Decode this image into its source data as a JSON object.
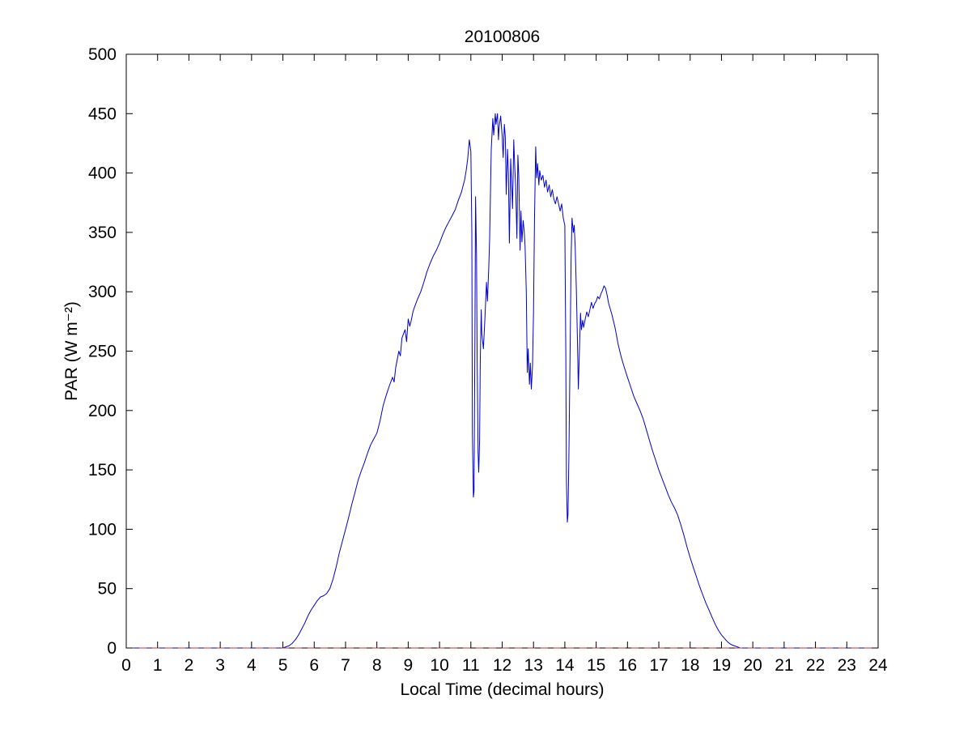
{
  "figure": {
    "background": "#ffffff",
    "axis_color": "#000000"
  },
  "chart_data": {
    "type": "line",
    "title": "20100806",
    "xlabel": "Local Time (decimal hours)",
    "ylabel": "PAR (W m⁻²)",
    "xlim": [
      0,
      24
    ],
    "ylim": [
      0,
      500
    ],
    "xticks": [
      0,
      1,
      2,
      3,
      4,
      5,
      6,
      7,
      8,
      9,
      10,
      11,
      12,
      13,
      14,
      15,
      16,
      17,
      18,
      19,
      20,
      21,
      22,
      23,
      24
    ],
    "yticks": [
      0,
      50,
      100,
      150,
      200,
      250,
      300,
      350,
      400,
      450,
      500
    ],
    "grid": false,
    "legend_position": "none",
    "series": [
      {
        "name": "PAR",
        "color": "#0000cc",
        "style": "solid",
        "width": 1,
        "points": [
          [
            0,
            0
          ],
          [
            0.5,
            0
          ],
          [
            1,
            0
          ],
          [
            1.5,
            0
          ],
          [
            2,
            0
          ],
          [
            2.5,
            0
          ],
          [
            3,
            0
          ],
          [
            3.5,
            0
          ],
          [
            4,
            0
          ],
          [
            4.5,
            0
          ],
          [
            4.8,
            0
          ],
          [
            5.0,
            0
          ],
          [
            5.1,
            1
          ],
          [
            5.2,
            2
          ],
          [
            5.3,
            4
          ],
          [
            5.4,
            7
          ],
          [
            5.5,
            11
          ],
          [
            5.6,
            16
          ],
          [
            5.7,
            21
          ],
          [
            5.8,
            27
          ],
          [
            5.9,
            32
          ],
          [
            6.0,
            36
          ],
          [
            6.1,
            40
          ],
          [
            6.2,
            43
          ],
          [
            6.3,
            44
          ],
          [
            6.4,
            46
          ],
          [
            6.5,
            50
          ],
          [
            6.6,
            58
          ],
          [
            6.7,
            68
          ],
          [
            6.8,
            80
          ],
          [
            6.9,
            90
          ],
          [
            7.0,
            100
          ],
          [
            7.1,
            110
          ],
          [
            7.2,
            121
          ],
          [
            7.3,
            131
          ],
          [
            7.4,
            141
          ],
          [
            7.5,
            149
          ],
          [
            7.6,
            156
          ],
          [
            7.7,
            164
          ],
          [
            7.8,
            171
          ],
          [
            7.9,
            176
          ],
          [
            8.0,
            181
          ],
          [
            8.1,
            191
          ],
          [
            8.2,
            204
          ],
          [
            8.3,
            213
          ],
          [
            8.4,
            221
          ],
          [
            8.5,
            228
          ],
          [
            8.55,
            224
          ],
          [
            8.6,
            236
          ],
          [
            8.7,
            250
          ],
          [
            8.75,
            246
          ],
          [
            8.8,
            261
          ],
          [
            8.9,
            268
          ],
          [
            8.95,
            258
          ],
          [
            9.0,
            277
          ],
          [
            9.05,
            271
          ],
          [
            9.1,
            276
          ],
          [
            9.15,
            283
          ],
          [
            9.2,
            287
          ],
          [
            9.3,
            294
          ],
          [
            9.4,
            300
          ],
          [
            9.5,
            308
          ],
          [
            9.6,
            317
          ],
          [
            9.7,
            324
          ],
          [
            9.8,
            330
          ],
          [
            9.9,
            335
          ],
          [
            10.0,
            341
          ],
          [
            10.1,
            348
          ],
          [
            10.2,
            354
          ],
          [
            10.3,
            359
          ],
          [
            10.4,
            364
          ],
          [
            10.5,
            369
          ],
          [
            10.6,
            377
          ],
          [
            10.7,
            384
          ],
          [
            10.8,
            394
          ],
          [
            10.85,
            402
          ],
          [
            10.9,
            412
          ],
          [
            10.95,
            428
          ],
          [
            11.0,
            418
          ],
          [
            11.03,
            350
          ],
          [
            11.05,
            180
          ],
          [
            11.08,
            127
          ],
          [
            11.1,
            132
          ],
          [
            11.13,
            260
          ],
          [
            11.15,
            380
          ],
          [
            11.18,
            330
          ],
          [
            11.2,
            250
          ],
          [
            11.23,
            165
          ],
          [
            11.25,
            148
          ],
          [
            11.28,
            175
          ],
          [
            11.3,
            240
          ],
          [
            11.33,
            285
          ],
          [
            11.35,
            265
          ],
          [
            11.4,
            252
          ],
          [
            11.45,
            278
          ],
          [
            11.5,
            308
          ],
          [
            11.53,
            292
          ],
          [
            11.57,
            320
          ],
          [
            11.6,
            345
          ],
          [
            11.65,
            420
          ],
          [
            11.7,
            446
          ],
          [
            11.73,
            432
          ],
          [
            11.78,
            450
          ],
          [
            11.8,
            441
          ],
          [
            11.85,
            450
          ],
          [
            11.88,
            428
          ],
          [
            11.9,
            438
          ],
          [
            11.95,
            448
          ],
          [
            12.0,
            431
          ],
          [
            12.03,
            413
          ],
          [
            12.07,
            441
          ],
          [
            12.1,
            430
          ],
          [
            12.13,
            382
          ],
          [
            12.17,
            420
          ],
          [
            12.2,
            400
          ],
          [
            12.23,
            341
          ],
          [
            12.27,
            412
          ],
          [
            12.3,
            392
          ],
          [
            12.33,
            370
          ],
          [
            12.37,
            428
          ],
          [
            12.4,
            405
          ],
          [
            12.43,
            390
          ],
          [
            12.47,
            345
          ],
          [
            12.5,
            415
          ],
          [
            12.53,
            398
          ],
          [
            12.57,
            335
          ],
          [
            12.6,
            368
          ],
          [
            12.63,
            342
          ],
          [
            12.67,
            360
          ],
          [
            12.7,
            352
          ],
          [
            12.73,
            338
          ],
          [
            12.77,
            300
          ],
          [
            12.8,
            232
          ],
          [
            12.83,
            252
          ],
          [
            12.87,
            222
          ],
          [
            12.9,
            240
          ],
          [
            12.93,
            218
          ],
          [
            12.97,
            238
          ],
          [
            13.0,
            282
          ],
          [
            13.03,
            360
          ],
          [
            13.07,
            422
          ],
          [
            13.1,
            396
          ],
          [
            13.13,
            408
          ],
          [
            13.17,
            390
          ],
          [
            13.2,
            402
          ],
          [
            13.25,
            394
          ],
          [
            13.3,
            398
          ],
          [
            13.35,
            388
          ],
          [
            13.4,
            394
          ],
          [
            13.45,
            384
          ],
          [
            13.5,
            390
          ],
          [
            13.55,
            380
          ],
          [
            13.6,
            386
          ],
          [
            13.65,
            378
          ],
          [
            13.7,
            374
          ],
          [
            13.75,
            380
          ],
          [
            13.8,
            374
          ],
          [
            13.85,
            368
          ],
          [
            13.9,
            374
          ],
          [
            13.95,
            362
          ],
          [
            14.0,
            356
          ],
          [
            14.03,
            250
          ],
          [
            14.05,
            140
          ],
          [
            14.08,
            106
          ],
          [
            14.1,
            112
          ],
          [
            14.13,
            160
          ],
          [
            14.17,
            255
          ],
          [
            14.2,
            330
          ],
          [
            14.23,
            362
          ],
          [
            14.27,
            350
          ],
          [
            14.3,
            356
          ],
          [
            14.33,
            338
          ],
          [
            14.37,
            300
          ],
          [
            14.4,
            262
          ],
          [
            14.43,
            218
          ],
          [
            14.47,
            255
          ],
          [
            14.5,
            282
          ],
          [
            14.53,
            268
          ],
          [
            14.57,
            276
          ],
          [
            14.6,
            270
          ],
          [
            14.65,
            277
          ],
          [
            14.7,
            283
          ],
          [
            14.75,
            279
          ],
          [
            14.8,
            285
          ],
          [
            14.85,
            291
          ],
          [
            14.9,
            286
          ],
          [
            14.95,
            290
          ],
          [
            15.0,
            292
          ],
          [
            15.05,
            296
          ],
          [
            15.1,
            294
          ],
          [
            15.15,
            298
          ],
          [
            15.2,
            301
          ],
          [
            15.25,
            305
          ],
          [
            15.3,
            303
          ],
          [
            15.35,
            297
          ],
          [
            15.4,
            290
          ],
          [
            15.5,
            281
          ],
          [
            15.6,
            270
          ],
          [
            15.7,
            256
          ],
          [
            15.8,
            245
          ],
          [
            15.9,
            236
          ],
          [
            16.0,
            228
          ],
          [
            16.1,
            220
          ],
          [
            16.2,
            212
          ],
          [
            16.3,
            206
          ],
          [
            16.4,
            200
          ],
          [
            16.5,
            193
          ],
          [
            16.6,
            184
          ],
          [
            16.7,
            175
          ],
          [
            16.8,
            166
          ],
          [
            16.9,
            158
          ],
          [
            17.0,
            150
          ],
          [
            17.1,
            143
          ],
          [
            17.2,
            136
          ],
          [
            17.3,
            129
          ],
          [
            17.4,
            123
          ],
          [
            17.5,
            118
          ],
          [
            17.6,
            112
          ],
          [
            17.7,
            104
          ],
          [
            17.8,
            95
          ],
          [
            17.9,
            85
          ],
          [
            18.0,
            76
          ],
          [
            18.1,
            68
          ],
          [
            18.2,
            60
          ],
          [
            18.3,
            52
          ],
          [
            18.4,
            45
          ],
          [
            18.5,
            38
          ],
          [
            18.6,
            32
          ],
          [
            18.7,
            26
          ],
          [
            18.8,
            20
          ],
          [
            18.9,
            15
          ],
          [
            19.0,
            11
          ],
          [
            19.1,
            8
          ],
          [
            19.2,
            5
          ],
          [
            19.3,
            3
          ],
          [
            19.4,
            2
          ],
          [
            19.5,
            1
          ],
          [
            19.6,
            0
          ],
          [
            19.8,
            0
          ],
          [
            20,
            0
          ],
          [
            20.5,
            0
          ],
          [
            21,
            0
          ],
          [
            21.5,
            0
          ],
          [
            22,
            0
          ],
          [
            22.5,
            0
          ],
          [
            23,
            0
          ],
          [
            23.5,
            0
          ],
          [
            24,
            0
          ]
        ]
      },
      {
        "name": "zero-reference",
        "color": "#cc3333",
        "style": "dashed",
        "width": 1,
        "points": [
          [
            0,
            0
          ],
          [
            24,
            0
          ]
        ]
      }
    ]
  }
}
